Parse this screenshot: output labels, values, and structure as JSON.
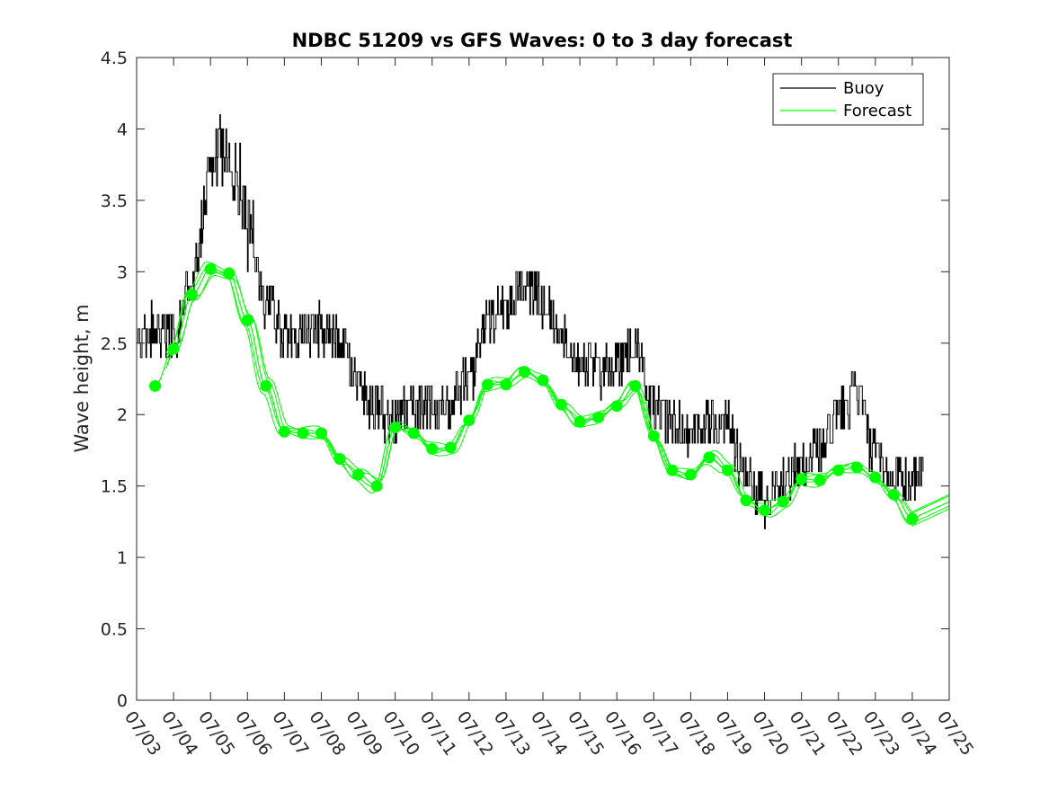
{
  "chart_data": {
    "type": "line",
    "title": "NDBC 51209 vs GFS Waves: 0 to 3 day forecast",
    "xlabel": "",
    "ylabel": "Wave height, m",
    "xlim": [
      "07/03 00:00",
      "07/25 00:00"
    ],
    "ylim": [
      0,
      4.5
    ],
    "yticks": [
      0,
      0.5,
      1,
      1.5,
      2,
      2.5,
      3,
      3.5,
      4,
      4.5
    ],
    "ytick_labels": [
      "0",
      "0.5",
      "1",
      "1.5",
      "2",
      "2.5",
      "3",
      "3.5",
      "4",
      "4.5"
    ],
    "xtick_labels": [
      "07/03",
      "07/04",
      "07/05",
      "07/06",
      "07/07",
      "07/08",
      "07/09",
      "07/10",
      "07/11",
      "07/12",
      "07/13",
      "07/14",
      "07/15",
      "07/16",
      "07/17",
      "07/18",
      "07/19",
      "07/20",
      "07/21",
      "07/22",
      "07/23",
      "07/24",
      "07/25"
    ],
    "grid": false,
    "legend": {
      "placement": "top-right",
      "entries": [
        "Buoy",
        "Forecast"
      ]
    },
    "series": [
      {
        "name": "Buoy",
        "color": "#000000",
        "x_day_of_july": [
          3.0,
          3.5,
          4.0,
          4.5,
          5.0,
          5.25,
          5.5,
          5.75,
          6.0,
          6.5,
          7.0,
          7.5,
          8.0,
          8.5,
          9.0,
          9.5,
          10.0,
          10.5,
          11.0,
          11.5,
          12.0,
          12.5,
          13.0,
          13.5,
          14.0,
          14.5,
          15.0,
          15.5,
          16.0,
          16.5,
          17.0,
          17.5,
          18.0,
          18.5,
          19.0,
          19.5,
          20.0,
          20.5,
          21.0,
          21.5,
          22.0,
          22.5,
          23.0,
          23.5,
          24.0,
          24.3
        ],
        "values": [
          2.5,
          2.6,
          2.55,
          2.95,
          3.6,
          3.8,
          3.75,
          3.65,
          3.3,
          2.8,
          2.55,
          2.55,
          2.6,
          2.5,
          2.2,
          2.05,
          1.95,
          2.05,
          2.05,
          2.1,
          2.25,
          2.65,
          2.75,
          2.9,
          2.8,
          2.55,
          2.4,
          2.3,
          2.35,
          2.45,
          2.05,
          1.95,
          1.9,
          1.95,
          1.9,
          1.6,
          1.4,
          1.55,
          1.65,
          1.75,
          2.0,
          2.15,
          1.7,
          1.55,
          1.5,
          1.6
        ]
      },
      {
        "name": "Forecast",
        "color": "#00ff00",
        "x_day_of_july": [
          3.5,
          4.0,
          4.5,
          5.0,
          5.5,
          6.0,
          6.5,
          7.0,
          7.5,
          8.0,
          8.5,
          9.0,
          9.5,
          10.0,
          10.5,
          11.0,
          11.5,
          12.0,
          12.5,
          13.0,
          13.5,
          14.0,
          14.5,
          15.0,
          15.5,
          16.0,
          16.5,
          17.0,
          17.5,
          18.0,
          18.5,
          19.0,
          19.5,
          20.0,
          20.5,
          21.0,
          21.5,
          22.0,
          22.5,
          23.0,
          23.5,
          24.0
        ],
        "values": [
          2.2,
          2.46,
          2.84,
          3.02,
          2.99,
          2.66,
          2.2,
          1.88,
          1.87,
          1.87,
          1.69,
          1.58,
          1.5,
          1.91,
          1.87,
          1.76,
          1.77,
          1.96,
          2.21,
          2.21,
          2.3,
          2.24,
          2.07,
          1.95,
          1.98,
          2.06,
          2.2,
          1.85,
          1.61,
          1.58,
          1.7,
          1.61,
          1.4,
          1.33,
          1.39,
          1.55,
          1.54,
          1.61,
          1.63,
          1.56,
          1.44,
          1.27
        ]
      }
    ]
  }
}
